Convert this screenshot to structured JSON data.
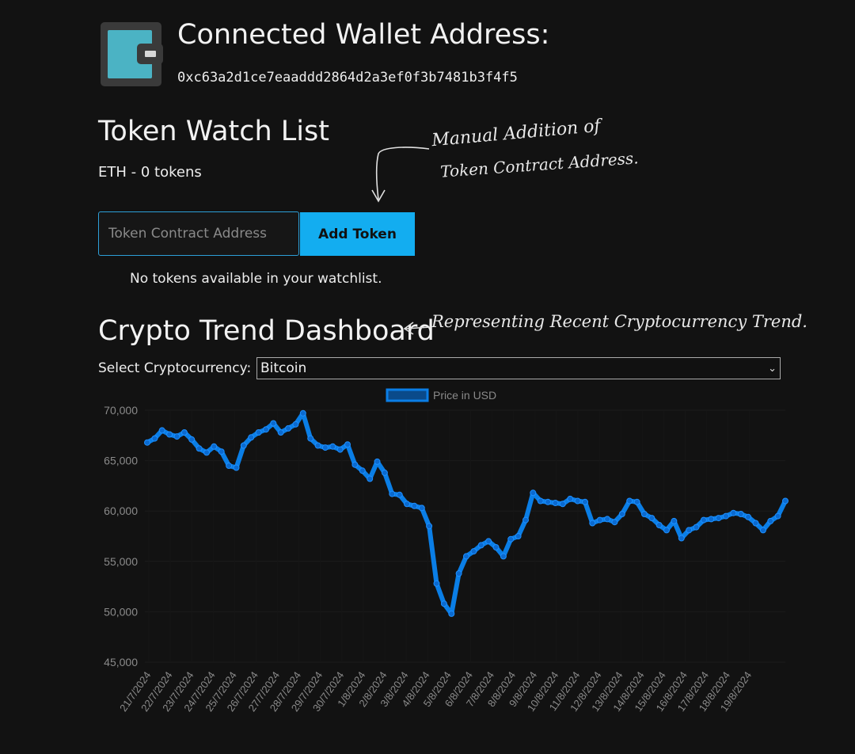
{
  "wallet": {
    "title": "Connected Wallet Address:",
    "address": "0xc63a2d1ce7eaaddd2864d2a3ef0f3b7481b3f4f5"
  },
  "watchlist": {
    "title": "Token Watch List",
    "eth_balance": "ETH - 0 tokens",
    "input_placeholder": "Token Contract Address",
    "add_button_label": "Add Token",
    "empty_message": "No tokens available in your watchlist."
  },
  "annotations": {
    "manual_line1": "Manual Addition of",
    "manual_line2": "Token Contract Address.",
    "trend": "Representing Recent Cryptocurrency Trend."
  },
  "dashboard": {
    "title": "Crypto Trend Dashboard",
    "select_label": "Select Cryptocurrency:",
    "selected_crypto": "Bitcoin"
  },
  "colors": {
    "accent": "#13adf0",
    "series": "#0a7ee6",
    "background": "#121212"
  },
  "chart_data": {
    "type": "line",
    "legend": "Price in USD",
    "legend_position": "top-center",
    "grid": true,
    "ylim": [
      45000,
      70000
    ],
    "y_ticks": [
      "70,000",
      "65,000",
      "60,000",
      "55,000",
      "50,000",
      "45,000"
    ],
    "y_tick_values": [
      70000,
      65000,
      60000,
      55000,
      50000,
      45000
    ],
    "x_tick_labels": [
      "21/7/2024",
      "22/7/2024",
      "23/7/2024",
      "24/7/2024",
      "25/7/2024",
      "26/7/2024",
      "27/7/2024",
      "28/7/2024",
      "29/7/2024",
      "30/7/2024",
      "1/8/2024",
      "2/8/2024",
      "3/8/2024",
      "4/8/2024",
      "5/8/2024",
      "6/8/2024",
      "7/8/2024",
      "8/8/2024",
      "9/8/2024",
      "10/8/2024",
      "11/8/2024",
      "12/8/2024",
      "13/8/2024",
      "14/8/2024",
      "15/8/2024",
      "16/8/2024",
      "17/8/2024",
      "18/8/2024",
      "19/8/2024"
    ],
    "series": [
      {
        "name": "Price in USD",
        "values": [
          66800,
          67200,
          68000,
          67600,
          67400,
          67800,
          67100,
          66200,
          65800,
          66400,
          65900,
          64500,
          64300,
          66500,
          67300,
          67800,
          68100,
          68700,
          67800,
          68200,
          68600,
          69700,
          67200,
          66500,
          66300,
          66400,
          66100,
          66600,
          64600,
          64000,
          63200,
          64900,
          63800,
          61700,
          61600,
          60700,
          60500,
          60300,
          58500,
          52800,
          50800,
          49800,
          53800,
          55500,
          56000,
          56600,
          57000,
          56400,
          55500,
          57200,
          57500,
          59100,
          61800,
          61000,
          60900,
          60800,
          60700,
          61200,
          61000,
          60900,
          58800,
          59100,
          59200,
          58900,
          59700,
          61000,
          60900,
          59700,
          59300,
          58600,
          58100,
          59000,
          57300,
          58100,
          58400,
          59100,
          59200,
          59300,
          59500,
          59800,
          59700,
          59400,
          58800,
          58100,
          59000,
          59500,
          61000
        ]
      }
    ]
  }
}
